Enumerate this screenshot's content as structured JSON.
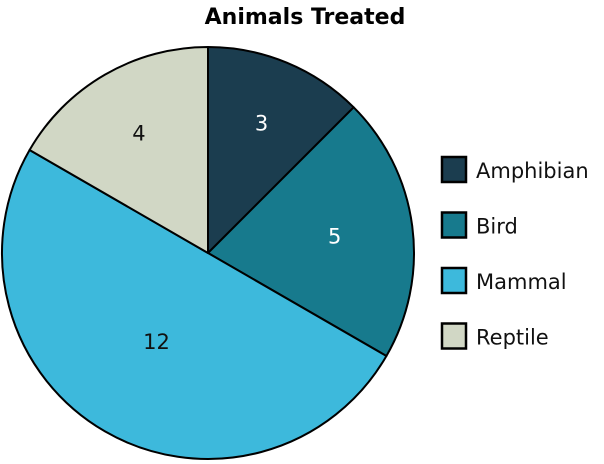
{
  "chart_data": {
    "type": "pie",
    "title": "Animals Treated",
    "categories": [
      "Amphibian",
      "Bird",
      "Mammal",
      "Reptile"
    ],
    "values": [
      3,
      5,
      12,
      4
    ],
    "colors": [
      "#1b3d4f",
      "#177a8d",
      "#3db9dc",
      "#d1d7c5"
    ],
    "label_colors": [
      "#ffffff",
      "#ffffff",
      "#111111",
      "#111111"
    ],
    "start_angle": "top, clockwise",
    "legend": "right"
  }
}
